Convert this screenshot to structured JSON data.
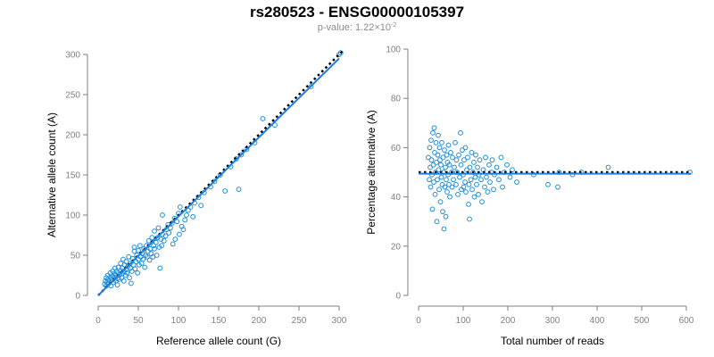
{
  "title": "rs280523 - ENSG00000105397",
  "subtitle": {
    "prefix": "p-value: 1.22×10",
    "exponent": "-2"
  },
  "colors": {
    "points": "#1f8fd6",
    "fit_line": "#1e7fe0",
    "expected_line": "#000000",
    "axis": "#7f7f7f"
  },
  "chart_data": [
    {
      "type": "scatter",
      "xlabel": "Reference allele count (G)",
      "ylabel": "Alternative allele count (A)",
      "xlim": [
        0,
        300
      ],
      "ylim": [
        0,
        300
      ],
      "xticks": [
        0,
        50,
        100,
        150,
        200,
        250,
        300
      ],
      "yticks": [
        0,
        50,
        100,
        150,
        200,
        250,
        300
      ],
      "fit_line": [
        [
          0,
          0
        ],
        [
          300,
          295
        ]
      ],
      "expected_line": {
        "style": "dotted",
        "points": [
          [
            0,
            0
          ],
          [
            305,
            305
          ]
        ]
      },
      "points": [
        [
          8,
          14
        ],
        [
          9,
          18
        ],
        [
          10,
          22
        ],
        [
          10,
          12
        ],
        [
          11,
          16
        ],
        [
          12,
          20
        ],
        [
          12,
          25
        ],
        [
          13,
          15
        ],
        [
          14,
          18
        ],
        [
          15,
          22
        ],
        [
          15,
          28
        ],
        [
          16,
          12
        ],
        [
          17,
          20
        ],
        [
          18,
          24
        ],
        [
          18,
          30
        ],
        [
          19,
          16
        ],
        [
          20,
          22
        ],
        [
          20,
          27
        ],
        [
          21,
          34
        ],
        [
          22,
          18
        ],
        [
          22,
          25
        ],
        [
          23,
          30
        ],
        [
          24,
          13
        ],
        [
          24,
          21
        ],
        [
          25,
          28
        ],
        [
          25,
          35
        ],
        [
          26,
          20
        ],
        [
          27,
          26
        ],
        [
          28,
          31
        ],
        [
          28,
          40
        ],
        [
          29,
          22
        ],
        [
          30,
          27
        ],
        [
          30,
          34
        ],
        [
          31,
          45
        ],
        [
          32,
          18
        ],
        [
          32,
          30
        ],
        [
          33,
          38
        ],
        [
          34,
          25
        ],
        [
          35,
          32
        ],
        [
          35,
          42
        ],
        [
          36,
          28
        ],
        [
          37,
          36
        ],
        [
          38,
          48
        ],
        [
          39,
          22
        ],
        [
          40,
          34
        ],
        [
          40,
          40
        ],
        [
          41,
          15
        ],
        [
          42,
          30
        ],
        [
          43,
          46
        ],
        [
          44,
          38
        ],
        [
          45,
          55
        ],
        [
          45,
          60
        ],
        [
          46,
          33
        ],
        [
          47,
          42
        ],
        [
          48,
          50
        ],
        [
          49,
          28
        ],
        [
          50,
          45
        ],
        [
          50,
          56
        ],
        [
          51,
          38
        ],
        [
          52,
          62
        ],
        [
          53,
          48
        ],
        [
          54,
          40
        ],
        [
          55,
          52
        ],
        [
          56,
          45
        ],
        [
          57,
          58
        ],
        [
          58,
          35
        ],
        [
          59,
          50
        ],
        [
          60,
          62
        ],
        [
          61,
          48
        ],
        [
          62,
          55
        ],
        [
          63,
          68
        ],
        [
          64,
          44
        ],
        [
          65,
          58
        ],
        [
          66,
          52
        ],
        [
          67,
          72
        ],
        [
          68,
          48
        ],
        [
          69,
          62
        ],
        [
          70,
          58
        ],
        [
          70,
          80
        ],
        [
          72,
          66
        ],
        [
          73,
          50
        ],
        [
          74,
          72
        ],
        [
          75,
          84
        ],
        [
          76,
          60
        ],
        [
          77,
          34
        ],
        [
          78,
          70
        ],
        [
          79,
          62
        ],
        [
          80,
          76
        ],
        [
          80,
          100
        ],
        [
          82,
          68
        ],
        [
          84,
          74
        ],
        [
          85,
          82
        ],
        [
          87,
          88
        ],
        [
          88,
          78
        ],
        [
          90,
          84
        ],
        [
          92,
          90
        ],
        [
          93,
          64
        ],
        [
          95,
          96
        ],
        [
          96,
          70
        ],
        [
          98,
          92
        ],
        [
          100,
          102
        ],
        [
          101,
          76
        ],
        [
          102,
          110
        ],
        [
          104,
          86
        ],
        [
          106,
          82
        ],
        [
          108,
          94
        ],
        [
          110,
          100
        ],
        [
          112,
          106
        ],
        [
          115,
          110
        ],
        [
          118,
          98
        ],
        [
          120,
          115
        ],
        [
          125,
          122
        ],
        [
          128,
          112
        ],
        [
          132,
          128
        ],
        [
          140,
          135
        ],
        [
          145,
          142
        ],
        [
          152,
          150
        ],
        [
          158,
          130
        ],
        [
          165,
          160
        ],
        [
          172,
          170
        ],
        [
          175,
          132
        ],
        [
          178,
          175
        ],
        [
          185,
          182
        ],
        [
          195,
          190
        ],
        [
          205,
          220
        ],
        [
          220,
          212
        ],
        [
          265,
          260
        ],
        [
          300,
          300
        ],
        [
          302,
          302
        ]
      ]
    },
    {
      "type": "scatter",
      "xlabel": "Total number of reads",
      "ylabel": "Percentage alternative (A)",
      "xlim": [
        0,
        600
      ],
      "ylim": [
        0,
        100
      ],
      "xticks": [
        0,
        100,
        200,
        300,
        400,
        500,
        600
      ],
      "yticks": [
        0,
        20,
        40,
        60,
        80,
        100
      ],
      "fit_line": [
        [
          0,
          49.4
        ],
        [
          610,
          49.4
        ]
      ],
      "expected_line": {
        "style": "dotted",
        "points": [
          [
            0,
            50
          ],
          [
            610,
            50
          ]
        ]
      },
      "points": [
        [
          22,
          56
        ],
        [
          24,
          47
        ],
        [
          25,
          60
        ],
        [
          26,
          52
        ],
        [
          27,
          44
        ],
        [
          28,
          63
        ],
        [
          29,
          55
        ],
        [
          30,
          49
        ],
        [
          31,
          35
        ],
        [
          32,
          66
        ],
        [
          33,
          53
        ],
        [
          34,
          46
        ],
        [
          35,
          68
        ],
        [
          36,
          58
        ],
        [
          37,
          41
        ],
        [
          38,
          50
        ],
        [
          39,
          62
        ],
        [
          40,
          54
        ],
        [
          41,
          30
        ],
        [
          42,
          47
        ],
        [
          43,
          57
        ],
        [
          44,
          65
        ],
        [
          45,
          51
        ],
        [
          46,
          43
        ],
        [
          47,
          60
        ],
        [
          48,
          55
        ],
        [
          49,
          38
        ],
        [
          50,
          53
        ],
        [
          51,
          48
        ],
        [
          52,
          62
        ],
        [
          53,
          45
        ],
        [
          54,
          34
        ],
        [
          55,
          56
        ],
        [
          56,
          50
        ],
        [
          57,
          27
        ],
        [
          58,
          59
        ],
        [
          59,
          44
        ],
        [
          60,
          52
        ],
        [
          61,
          32
        ],
        [
          62,
          47
        ],
        [
          63,
          57
        ],
        [
          64,
          42
        ],
        [
          65,
          54
        ],
        [
          66,
          49
        ],
        [
          67,
          61
        ],
        [
          68,
          45
        ],
        [
          69,
          53
        ],
        [
          70,
          40
        ],
        [
          72,
          58
        ],
        [
          74,
          50
        ],
        [
          75,
          44
        ],
        [
          76,
          56
        ],
        [
          78,
          47
        ],
        [
          80,
          52
        ],
        [
          82,
          62
        ],
        [
          84,
          45
        ],
        [
          85,
          55
        ],
        [
          86,
          50
        ],
        [
          88,
          41
        ],
        [
          90,
          57
        ],
        [
          92,
          48
        ],
        [
          94,
          66
        ],
        [
          95,
          53
        ],
        [
          96,
          43
        ],
        [
          98,
          59
        ],
        [
          100,
          49
        ],
        [
          101,
          44
        ],
        [
          102,
          55
        ],
        [
          104,
          46
        ],
        [
          105,
          60
        ],
        [
          106,
          42
        ],
        [
          108,
          51
        ],
        [
          110,
          56
        ],
        [
          112,
          37
        ],
        [
          113,
          45
        ],
        [
          114,
          31
        ],
        [
          115,
          52
        ],
        [
          117,
          47
        ],
        [
          119,
          58
        ],
        [
          120,
          43
        ],
        [
          122,
          50
        ],
        [
          124,
          54
        ],
        [
          125,
          40
        ],
        [
          127,
          48
        ],
        [
          128,
          57
        ],
        [
          130,
          45
        ],
        [
          132,
          52
        ],
        [
          134,
          41
        ],
        [
          135,
          49
        ],
        [
          137,
          55
        ],
        [
          140,
          47
        ],
        [
          142,
          38
        ],
        [
          145,
          51
        ],
        [
          148,
          44
        ],
        [
          150,
          56
        ],
        [
          152,
          48
        ],
        [
          155,
          42
        ],
        [
          158,
          53
        ],
        [
          160,
          46
        ],
        [
          163,
          50
        ],
        [
          165,
          55
        ],
        [
          168,
          43
        ],
        [
          170,
          49
        ],
        [
          175,
          52
        ],
        [
          180,
          47
        ],
        [
          185,
          56
        ],
        [
          188,
          44
        ],
        [
          192,
          50
        ],
        [
          198,
          53
        ],
        [
          205,
          48
        ],
        [
          210,
          51
        ],
        [
          220,
          46
        ],
        [
          258,
          49
        ],
        [
          290,
          45
        ],
        [
          312,
          44
        ],
        [
          315,
          50
        ],
        [
          345,
          49
        ],
        [
          365,
          50
        ],
        [
          425,
          52
        ],
        [
          608,
          50
        ]
      ]
    }
  ]
}
